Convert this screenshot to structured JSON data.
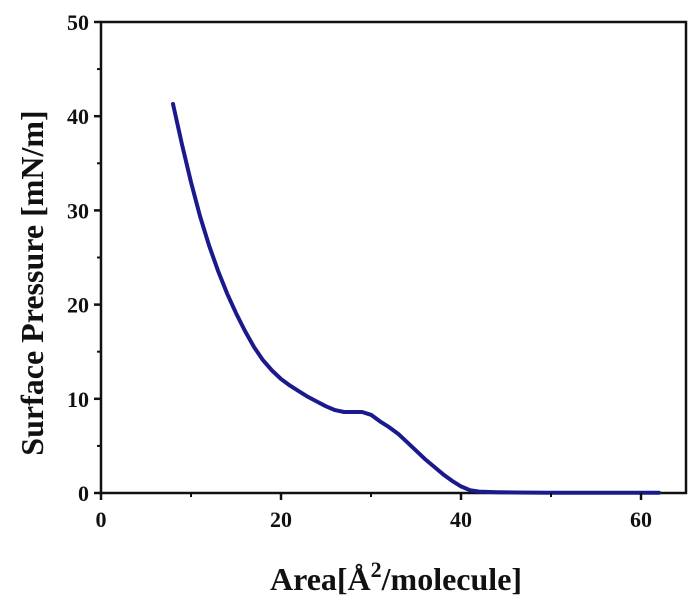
{
  "chart_data": {
    "type": "line",
    "title": "",
    "xlabel": "Area[Å²/molecule]",
    "xlabel_parts": {
      "pre": "Area[Å",
      "sup": "2",
      "post": "/molecule]"
    },
    "ylabel": "Surface Pressure [mN/m]",
    "xlim": [
      0,
      65
    ],
    "ylim": [
      0,
      50
    ],
    "x_ticks": [
      0,
      20,
      40,
      60
    ],
    "y_ticks": [
      0,
      10,
      20,
      30,
      40,
      50
    ],
    "x_tick_labels": [
      "0",
      "20",
      "40",
      "60"
    ],
    "y_tick_labels": [
      "0",
      "10",
      "20",
      "30",
      "40",
      "50"
    ],
    "grid": false,
    "legend": "none",
    "series": [
      {
        "color": "#1a1a8c",
        "points": [
          [
            8.0,
            41.3
          ],
          [
            9.0,
            37.0
          ],
          [
            10.0,
            33.0
          ],
          [
            11.0,
            29.4
          ],
          [
            12.0,
            26.3
          ],
          [
            13.0,
            23.6
          ],
          [
            14.0,
            21.2
          ],
          [
            15.0,
            19.1
          ],
          [
            16.0,
            17.2
          ],
          [
            17.0,
            15.5
          ],
          [
            18.0,
            14.1
          ],
          [
            19.0,
            13.0
          ],
          [
            20.0,
            12.1
          ],
          [
            21.0,
            11.4
          ],
          [
            22.0,
            10.8
          ],
          [
            23.0,
            10.2
          ],
          [
            24.0,
            9.7
          ],
          [
            25.0,
            9.2
          ],
          [
            26.0,
            8.8
          ],
          [
            27.0,
            8.6
          ],
          [
            28.0,
            8.6
          ],
          [
            29.0,
            8.6
          ],
          [
            30.0,
            8.3
          ],
          [
            31.0,
            7.6
          ],
          [
            32.0,
            7.0
          ],
          [
            33.0,
            6.3
          ],
          [
            34.0,
            5.4
          ],
          [
            35.0,
            4.5
          ],
          [
            36.0,
            3.6
          ],
          [
            37.0,
            2.8
          ],
          [
            38.0,
            2.0
          ],
          [
            39.0,
            1.3
          ],
          [
            40.0,
            0.7
          ],
          [
            41.0,
            0.3
          ],
          [
            42.0,
            0.15
          ],
          [
            44.0,
            0.08
          ],
          [
            46.0,
            0.05
          ],
          [
            50.0,
            0.03
          ],
          [
            55.0,
            0.02
          ],
          [
            60.0,
            0.02
          ],
          [
            62.0,
            0.02
          ]
        ]
      }
    ]
  }
}
